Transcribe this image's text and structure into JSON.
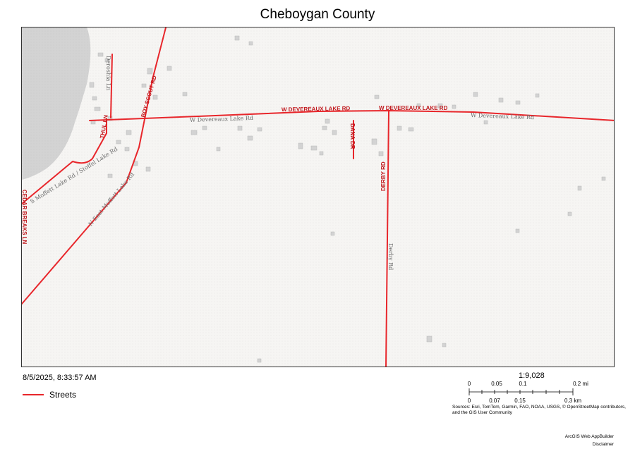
{
  "title": "Cheboygan County",
  "timestamp": "8/5/2025, 8:33:57 AM",
  "legend": {
    "label": "Streets",
    "color": "#e8262b"
  },
  "scale": {
    "ratio": "1:9,028",
    "mile_ticks": [
      "0",
      "0.05",
      "0.1",
      "0.2 mi"
    ],
    "km_ticks": [
      "0",
      "0.07",
      "0.15",
      "0.3 km"
    ]
  },
  "sources": "Sources: Esri, TomTom, Garmin, FAO, NOAA, USGS, © OpenStreetMap contributors, and the GIS User Community",
  "footer": {
    "builder": "ArcGIS Web AppBuilder",
    "disclaimer": "Disclaimer"
  },
  "map": {
    "colors": {
      "street": "#e8262b",
      "water": "#d3d3d3",
      "land": "#f6f5f3",
      "building": "#d0d0d0"
    },
    "street_labels": {
      "w_devereaux_1": "W DEVEREAUX LAKE RD",
      "w_devereaux_2": "W DEVEREAUX LAKE RD",
      "boy_scout": "BOY SCOUT RD",
      "dana": "DANA DR",
      "derby": "DERBY RD",
      "thul": "THUL LN",
      "cedar_breaks": "CEDAR BREAKS LN"
    },
    "base_labels": {
      "w_devereaux_a": "W Devereaux Lake Rd",
      "w_devereaux_b": "W Devereaux Lake Rd",
      "derby": "Derby Rd",
      "e_moffett": "N East Moffett Lake Rd",
      "moffett_stoffel": "S Moffett Lake Rd / Stoffel Lake Rd",
      "deroshia": "Deroshia Ln"
    }
  }
}
